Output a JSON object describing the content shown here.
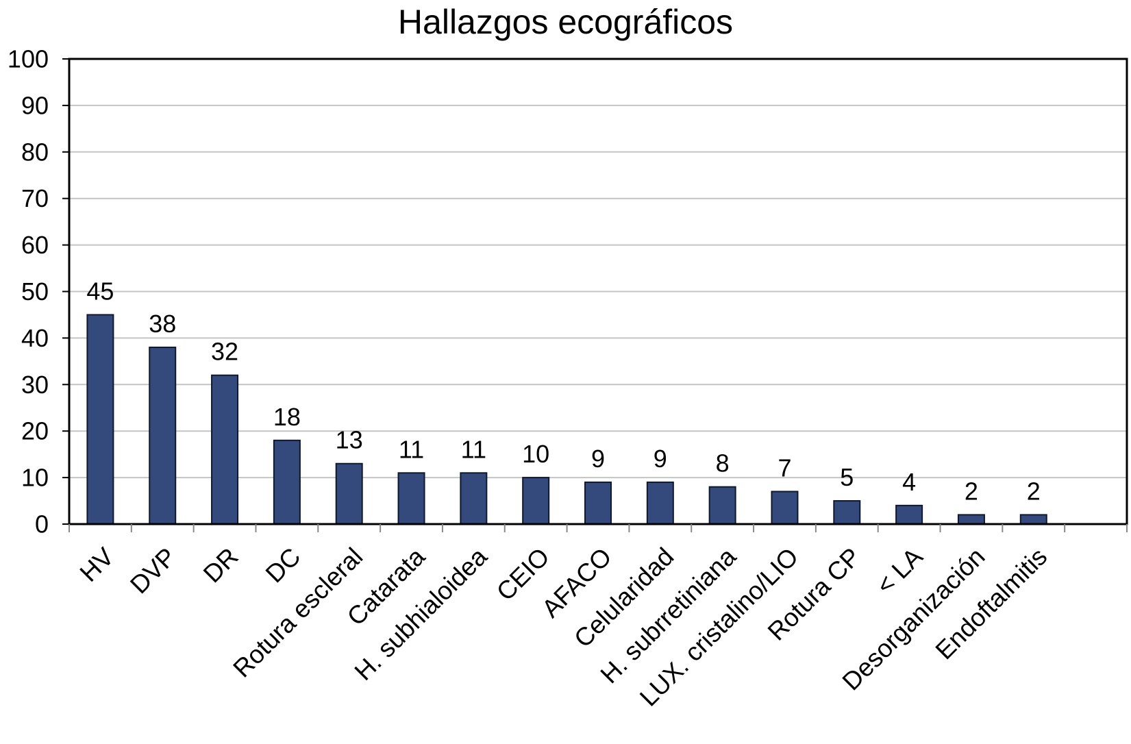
{
  "chart_data": {
    "type": "bar",
    "title": "Hallazgos ecográficos",
    "xlabel": "",
    "ylabel": "",
    "ylim": [
      0,
      100
    ],
    "yticks": [
      0,
      10,
      20,
      30,
      40,
      50,
      60,
      70,
      80,
      90,
      100
    ],
    "grid": true,
    "legend": "none",
    "categories": [
      "HV",
      "DVP",
      "DR",
      "DC",
      "Rotura escleral",
      "Catarata",
      "H. subhialoidea",
      "CEIO",
      "AFACO",
      "Celularidad",
      "H. subrretiniana",
      "LUX. cristalino/LIO",
      "Rotura CP",
      "< LA",
      "Desorganización",
      "Endoftalmitis"
    ],
    "values": [
      45,
      38,
      32,
      18,
      13,
      11,
      11,
      10,
      9,
      9,
      8,
      7,
      5,
      4,
      2,
      2
    ],
    "bar_color": "#344a7c",
    "grid_color": "#c4c4c4"
  }
}
